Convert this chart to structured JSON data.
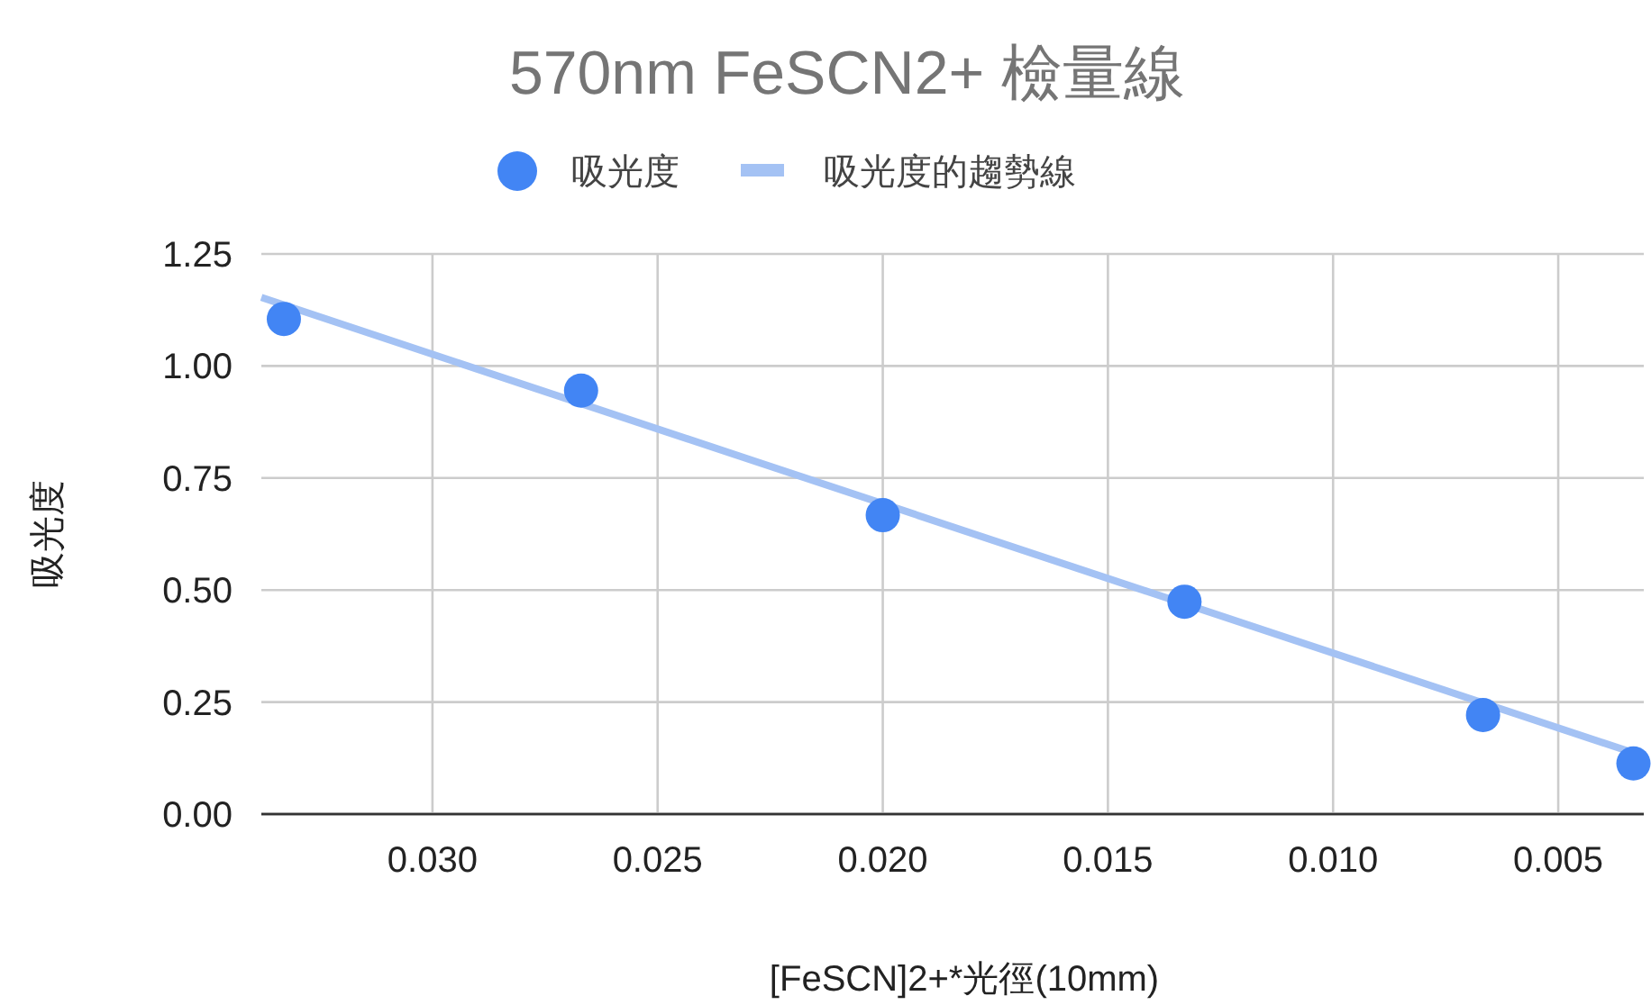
{
  "chart_data": {
    "type": "scatter",
    "title": "570nm FeSCN2+ 檢量線",
    "xlabel": "[FeSCN]2+*光徑(10mm)",
    "ylabel": "吸光度",
    "xlim": [
      0.0338,
      0.0031
    ],
    "ylim": [
      0,
      1.25
    ],
    "xticks": [
      {
        "value": 0.03,
        "label": "0.030"
      },
      {
        "value": 0.025,
        "label": "0.025"
      },
      {
        "value": 0.02,
        "label": "0.020"
      },
      {
        "value": 0.015,
        "label": "0.015"
      },
      {
        "value": 0.01,
        "label": "0.010"
      },
      {
        "value": 0.005,
        "label": "0.005"
      }
    ],
    "yticks": [
      {
        "value": 0,
        "label": "0.00"
      },
      {
        "value": 0.25,
        "label": "0.25"
      },
      {
        "value": 0.5,
        "label": "0.50"
      },
      {
        "value": 0.75,
        "label": "0.75"
      },
      {
        "value": 1,
        "label": "1.00"
      },
      {
        "value": 1.25,
        "label": "1.25"
      }
    ],
    "grid": true,
    "legend": "top",
    "series": [
      {
        "name": "吸光度",
        "marker": "circle",
        "color": "#4285f4",
        "x": [
          0.0333,
          0.0267,
          0.02,
          0.0133,
          0.00667,
          0.00333
        ],
        "values": [
          1.105,
          0.945,
          0.667,
          0.474,
          0.221,
          0.113
        ]
      },
      {
        "name": "吸光度的趨勢線",
        "type": "line",
        "color": "#a4c2f4",
        "x": [
          0.0338,
          0.0031
        ],
        "values": [
          1.153,
          0.129
        ]
      }
    ]
  }
}
